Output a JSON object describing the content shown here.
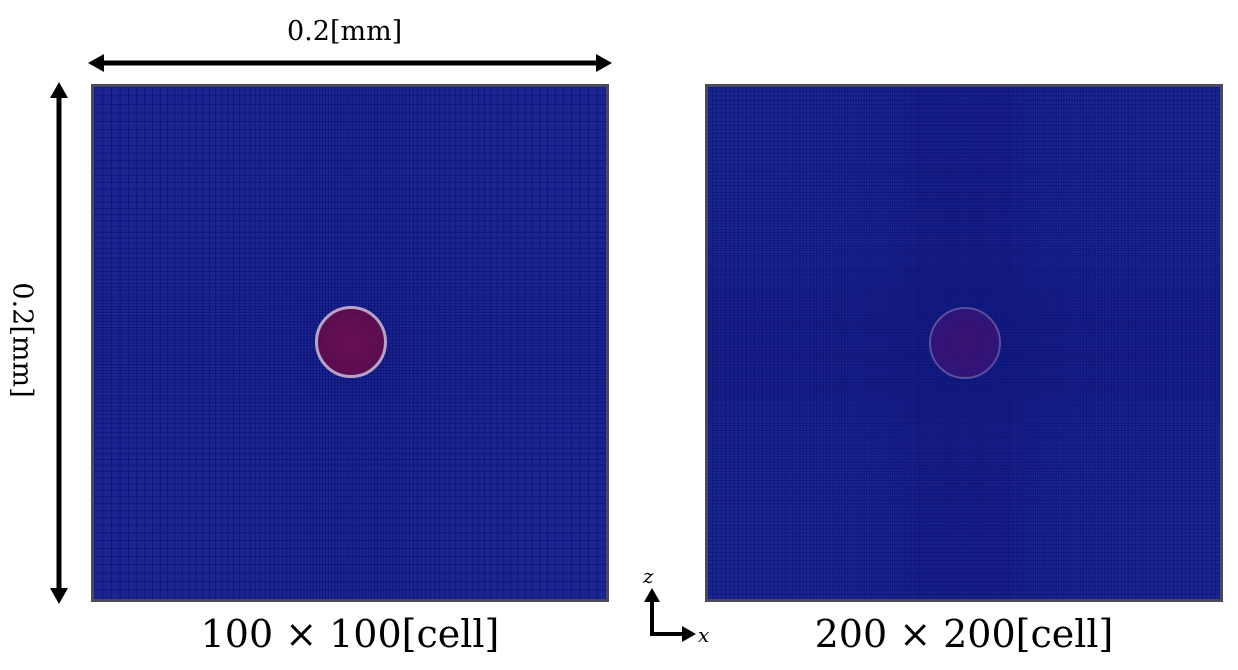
{
  "dimensions": {
    "width_label": "0.2[mm]",
    "height_label": "0.2[mm]"
  },
  "panels": [
    {
      "caption": "100 × 100[cell]",
      "background_color": "#1b2591",
      "grid_line_color": "#0a0f6e",
      "droplet_color": "#5a0d50"
    },
    {
      "caption": "200 × 200[cell]",
      "background_color": "#1b2591",
      "grid_line_color": "#0a0f6e",
      "droplet_color": "#2f1478"
    }
  ],
  "axes": {
    "vertical": "z",
    "horizontal": "x"
  }
}
